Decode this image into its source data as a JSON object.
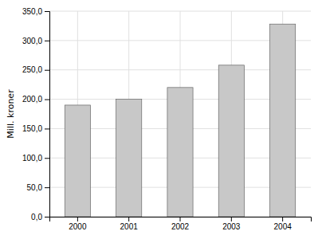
{
  "chart_data": {
    "type": "bar",
    "categories": [
      "2000",
      "2001",
      "2002",
      "2003",
      "2004"
    ],
    "values": [
      190,
      200,
      220,
      258,
      328
    ],
    "color": "#c8c8c8",
    "ylabel": "Mill. kroner",
    "ylim": [
      0,
      350
    ],
    "yticks": [
      {
        "value": 0,
        "label": "0,0"
      },
      {
        "value": 50,
        "label": "50,0"
      },
      {
        "value": 100,
        "label": "100,0"
      },
      {
        "value": 150,
        "label": "150,0"
      },
      {
        "value": 200,
        "label": "200,0"
      },
      {
        "value": 250,
        "label": "250,0"
      },
      {
        "value": 300,
        "label": "300,0"
      },
      {
        "value": 350,
        "label": "350,0"
      }
    ],
    "grid": true
  }
}
